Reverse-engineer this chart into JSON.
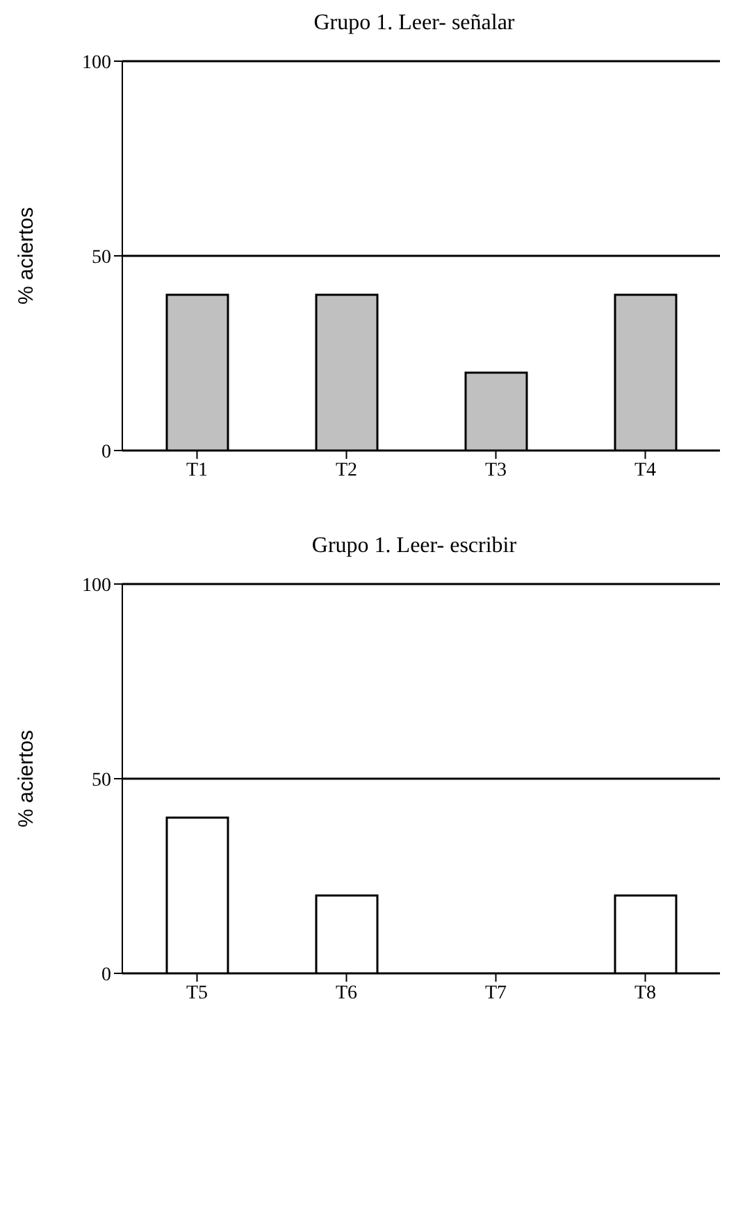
{
  "chart_data": [
    {
      "type": "bar",
      "title": "Grupo 1. Leer- señalar",
      "ylabel": "% aciertos",
      "categories": [
        "T1",
        "T2",
        "T3",
        "T4"
      ],
      "values": [
        40,
        40,
        20,
        40
      ],
      "color": "#c0c0c0",
      "ylim": [
        0,
        100
      ],
      "yticks": [
        0,
        50,
        100
      ],
      "grid": "y",
      "legend": false
    },
    {
      "type": "bar",
      "title": "Grupo 1. Leer- escribir",
      "ylabel": "% aciertos",
      "categories": [
        "T5",
        "T6",
        "T7",
        "T8"
      ],
      "values": [
        40,
        20,
        0,
        20
      ],
      "color": "#ffffff",
      "ylim": [
        0,
        100
      ],
      "yticks": [
        0,
        50,
        100
      ],
      "grid": "y",
      "legend": false
    }
  ]
}
